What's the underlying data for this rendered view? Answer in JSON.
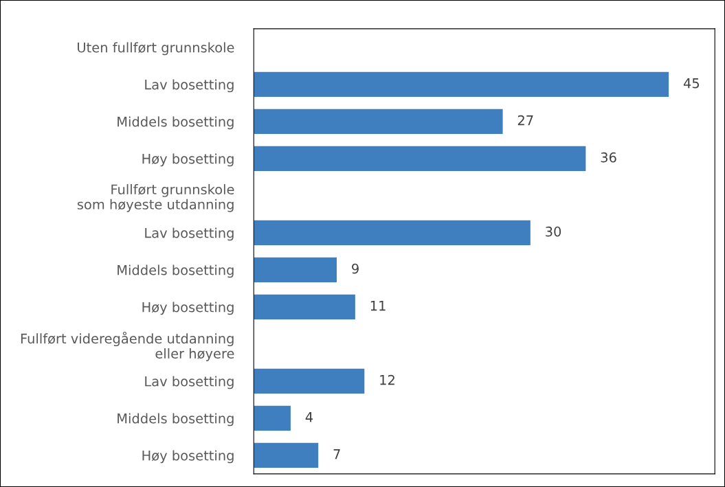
{
  "chart_data": {
    "type": "bar",
    "orientation": "horizontal",
    "categories": [
      "Uten fullført grunnskole",
      "Lav bosetting",
      "Middels bosetting",
      "Høy bosetting",
      "Fullført grunnskole\nsom høyeste utdanning",
      "Lav bosetting",
      "Middels bosetting",
      "Høy bosetting",
      "Fullført videregående utdanning\neller høyere",
      "Lav bosetting",
      "Middels bosetting",
      "Høy bosetting"
    ],
    "values": [
      null,
      45,
      27,
      36,
      null,
      30,
      9,
      11,
      null,
      12,
      4,
      7
    ],
    "color": "#3f7fbf",
    "data_labels": true,
    "xlim": [
      0,
      50
    ],
    "tick_labels": "y",
    "grid": false,
    "legend": false
  }
}
